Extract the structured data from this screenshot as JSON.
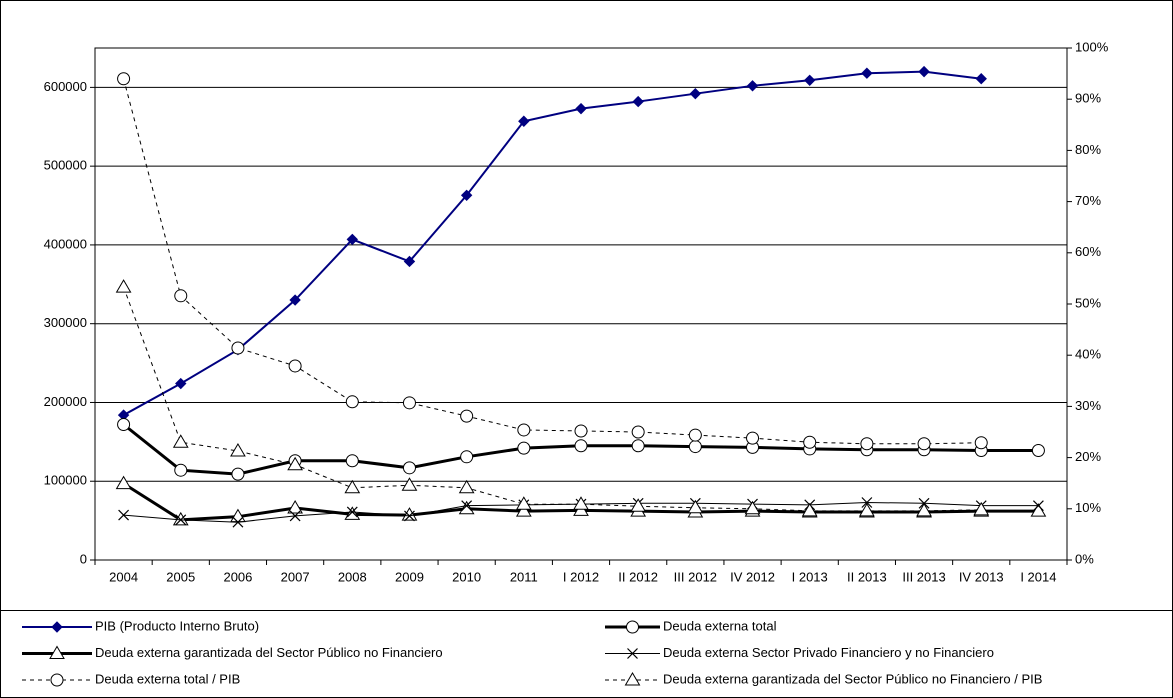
{
  "chart_data": {
    "type": "line",
    "categories": [
      "2004",
      "2005",
      "2006",
      "2007",
      "2008",
      "2009",
      "2010",
      "2011",
      "I 2012",
      "II 2012",
      "III 2012",
      "IV 2012",
      "I 2013",
      "II 2013",
      "III 2013",
      "IV 2013",
      "I 2014"
    ],
    "ylim": [
      0,
      650000
    ],
    "yticks": [
      0,
      100000,
      200000,
      300000,
      400000,
      500000,
      600000
    ],
    "y2lim": [
      0,
      100
    ],
    "y2ticks": [
      {
        "value": 0,
        "label": "0%"
      },
      {
        "value": 10,
        "label": "10%"
      },
      {
        "value": 20,
        "label": "20%"
      },
      {
        "value": 30,
        "label": "30%"
      },
      {
        "value": 40,
        "label": "40%"
      },
      {
        "value": 50,
        "label": "50%"
      },
      {
        "value": 60,
        "label": "60%"
      },
      {
        "value": 70,
        "label": "70%"
      },
      {
        "value": 80,
        "label": "80%"
      },
      {
        "value": 90,
        "label": "90%"
      },
      {
        "value": 100,
        "label": "100%"
      }
    ],
    "grid": true,
    "legend": "bottom",
    "series": [
      {
        "name": "PIB (Producto Interno Bruto)",
        "color": "#000080",
        "marker": "diamond",
        "line_style": "solid",
        "line_width": 2,
        "values": [
          184000,
          224000,
          267000,
          330000,
          407000,
          379000,
          463000,
          557000,
          573000,
          582000,
          592000,
          602000,
          609000,
          618000,
          620000,
          611000,
          null
        ]
      },
      {
        "name": "Deuda externa total",
        "color": "#000000",
        "marker": "circle",
        "line_style": "solid",
        "line_width": 3,
        "values": [
          172000,
          114000,
          109000,
          126000,
          126000,
          117000,
          131000,
          142000,
          145000,
          145000,
          144000,
          143000,
          141000,
          140000,
          140000,
          139000,
          139000
        ]
      },
      {
        "name": "Deuda externa garantizada del Sector Público no Financiero",
        "color": "#000000",
        "marker": "triangle",
        "line_style": "solid",
        "line_width": 3,
        "values": [
          97000,
          51000,
          55000,
          66000,
          58000,
          57000,
          65000,
          62000,
          63000,
          62000,
          61000,
          62000,
          61000,
          61000,
          61000,
          62000,
          62000
        ]
      },
      {
        "name": "Deuda externa Sector Privado Financiero y no Financiero",
        "color": "#000000",
        "marker": "x",
        "line_style": "solid",
        "line_width": 1,
        "values": [
          57000,
          51000,
          48000,
          56000,
          61000,
          56000,
          69000,
          70000,
          71000,
          72000,
          72000,
          71000,
          70000,
          73000,
          72000,
          69000,
          69000
        ]
      },
      {
        "name": "Deuda externa total / PIB",
        "color": "#000000",
        "marker": "circle",
        "line_style": "dashed",
        "line_width": 1,
        "axis": "y2",
        "values": [
          94,
          51.6,
          41.4,
          37.9,
          30.9,
          30.7,
          28.1,
          25.4,
          25.2,
          25,
          24.4,
          23.8,
          23,
          22.7,
          22.7,
          22.9,
          null
        ]
      },
      {
        "name": "Deuda externa garantizada del Sector Público no Financiero / PIB",
        "color": "#000000",
        "marker": "triangle",
        "line_style": "dashed",
        "line_width": 1,
        "axis": "y2",
        "values": [
          53.3,
          23,
          21.3,
          18.6,
          14.1,
          14.6,
          14.1,
          10.9,
          10.9,
          10.5,
          10.2,
          10,
          9.6,
          9.6,
          9.6,
          9.8,
          null
        ]
      }
    ]
  }
}
